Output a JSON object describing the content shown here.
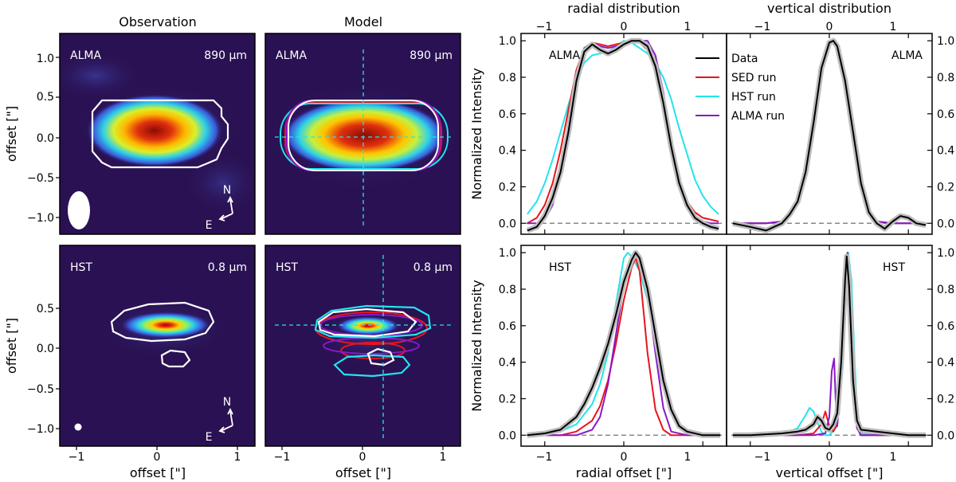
{
  "colors": {
    "panel_bg": "#2a1153",
    "data": "#000000",
    "sed": "#e8141c",
    "hst_run": "#22e4ec",
    "alma_run": "#8a18c8",
    "baseline": "#888888",
    "data_band": "#bdbdbd",
    "contour_obs": "#ffffff"
  },
  "images": {
    "column_titles": [
      "Observation",
      "Model"
    ],
    "x_axis_label": "offset [\"]",
    "y_axis_label": "offset [\"]",
    "x_ticks": [
      "−1",
      "0",
      "1"
    ],
    "y_ticks_alma": [
      "1.0",
      "0.5",
      "0.0",
      "−0.5",
      "−1.0"
    ],
    "y_ticks_hst": [
      "0.5",
      "0.0",
      "−0.5",
      "−1.0"
    ],
    "compass": {
      "north": "N",
      "east": "E"
    },
    "panels": [
      {
        "id": "obs-alma",
        "instrument": "ALMA",
        "wavelength": "890 μm"
      },
      {
        "id": "model-alma",
        "instrument": "ALMA",
        "wavelength": "890 μm"
      },
      {
        "id": "obs-hst",
        "instrument": "HST",
        "wavelength": "0.8 μm"
      },
      {
        "id": "model-hst",
        "instrument": "HST",
        "wavelength": "0.8 μm"
      }
    ]
  },
  "profiles": {
    "top_labels": [
      "radial distribution",
      "vertical distribution"
    ],
    "y_label": "Normalized Intensity",
    "x_labels": [
      "radial offset [\"]",
      "vertical offset [\"]"
    ],
    "x_ticks": [
      "−1",
      "0",
      "1"
    ],
    "y_ticks": [
      "0.0",
      "0.2",
      "0.4",
      "0.6",
      "0.8",
      "1.0"
    ],
    "row_labels": [
      "ALMA",
      "HST"
    ],
    "legend": [
      "Data",
      "SED run",
      "HST run",
      "ALMA run"
    ]
  },
  "chart_data": [
    {
      "type": "line",
      "title": "ALMA radial distribution",
      "xlabel": "",
      "ylabel": "Normalized Intensity",
      "xlim": [
        -1.3,
        1.3
      ],
      "ylim": [
        -0.06,
        1.04
      ],
      "series": [
        {
          "name": "Data",
          "x": [
            -1.22,
            -1.1,
            -1.0,
            -0.9,
            -0.8,
            -0.7,
            -0.6,
            -0.5,
            -0.4,
            -0.3,
            -0.2,
            -0.1,
            0.0,
            0.1,
            0.2,
            0.3,
            0.4,
            0.5,
            0.6,
            0.7,
            0.8,
            0.9,
            1.0,
            1.1,
            1.2
          ],
          "y": [
            -0.04,
            -0.02,
            0.04,
            0.14,
            0.28,
            0.5,
            0.78,
            0.94,
            0.98,
            0.95,
            0.93,
            0.95,
            0.98,
            1.0,
            1.0,
            0.97,
            0.86,
            0.66,
            0.42,
            0.22,
            0.1,
            0.03,
            0.0,
            -0.02,
            -0.03
          ]
        },
        {
          "name": "SED run",
          "x": [
            -1.22,
            -1.1,
            -1.0,
            -0.9,
            -0.8,
            -0.7,
            -0.6,
            -0.5,
            -0.4,
            -0.3,
            -0.2,
            -0.1,
            0.0,
            0.1,
            0.2,
            0.3,
            0.4,
            0.5,
            0.6,
            0.7,
            0.8,
            0.9,
            1.0,
            1.1,
            1.2
          ],
          "y": [
            0.0,
            0.03,
            0.1,
            0.22,
            0.4,
            0.62,
            0.84,
            0.96,
            0.99,
            0.98,
            0.97,
            0.98,
            0.99,
            1.0,
            0.99,
            0.95,
            0.84,
            0.64,
            0.42,
            0.24,
            0.12,
            0.06,
            0.03,
            0.02,
            0.01
          ]
        },
        {
          "name": "HST run",
          "x": [
            -1.22,
            -1.1,
            -1.0,
            -0.9,
            -0.8,
            -0.7,
            -0.6,
            -0.5,
            -0.4,
            -0.3,
            -0.2,
            -0.1,
            0.0,
            0.1,
            0.2,
            0.3,
            0.4,
            0.5,
            0.6,
            0.7,
            0.8,
            0.9,
            1.0,
            1.1,
            1.2
          ],
          "y": [
            0.05,
            0.12,
            0.22,
            0.35,
            0.5,
            0.65,
            0.78,
            0.88,
            0.92,
            0.93,
            0.94,
            0.97,
            1.0,
            0.99,
            0.96,
            0.93,
            0.88,
            0.8,
            0.68,
            0.52,
            0.38,
            0.24,
            0.15,
            0.09,
            0.05
          ]
        },
        {
          "name": "ALMA run",
          "x": [
            -1.22,
            -1.1,
            -1.0,
            -0.9,
            -0.8,
            -0.7,
            -0.6,
            -0.5,
            -0.4,
            -0.3,
            -0.2,
            -0.1,
            0.0,
            0.1,
            0.2,
            0.3,
            0.4,
            0.5,
            0.6,
            0.7,
            0.8,
            0.9,
            1.0,
            1.1,
            1.2
          ],
          "y": [
            0.0,
            0.0,
            0.02,
            0.1,
            0.3,
            0.56,
            0.82,
            0.96,
            0.99,
            0.97,
            0.96,
            0.97,
            0.98,
            0.99,
            1.0,
            1.0,
            0.92,
            0.72,
            0.46,
            0.24,
            0.1,
            0.03,
            0.01,
            0.0,
            0.0
          ]
        }
      ]
    },
    {
      "type": "line",
      "title": "ALMA vertical distribution",
      "xlabel": "",
      "ylabel": "",
      "xlim": [
        -1.3,
        1.3
      ],
      "ylim": [
        -0.06,
        1.04
      ],
      "series": [
        {
          "name": "Data",
          "x": [
            -1.22,
            -1.0,
            -0.8,
            -0.6,
            -0.5,
            -0.4,
            -0.3,
            -0.2,
            -0.1,
            0.0,
            0.05,
            0.1,
            0.2,
            0.3,
            0.4,
            0.5,
            0.6,
            0.7,
            0.8,
            0.9,
            1.0,
            1.1,
            1.22
          ],
          "y": [
            0.0,
            -0.02,
            -0.04,
            0.0,
            0.05,
            0.12,
            0.28,
            0.55,
            0.85,
            0.99,
            1.0,
            0.97,
            0.78,
            0.5,
            0.22,
            0.06,
            0.0,
            -0.03,
            0.01,
            0.04,
            0.03,
            0.0,
            -0.01
          ]
        },
        {
          "name": "SED run",
          "x": [
            -1.22,
            -0.8,
            -0.6,
            -0.5,
            -0.4,
            -0.3,
            -0.2,
            -0.1,
            0.0,
            0.05,
            0.1,
            0.2,
            0.3,
            0.4,
            0.5,
            0.6,
            0.8,
            1.22
          ],
          "y": [
            0.0,
            0.0,
            0.01,
            0.05,
            0.13,
            0.3,
            0.57,
            0.87,
            0.99,
            1.0,
            0.97,
            0.78,
            0.48,
            0.2,
            0.05,
            0.01,
            0.0,
            0.0
          ]
        },
        {
          "name": "HST run",
          "x": [
            -1.22,
            -0.8,
            -0.6,
            -0.5,
            -0.4,
            -0.3,
            -0.2,
            -0.1,
            0.0,
            0.05,
            0.1,
            0.2,
            0.3,
            0.4,
            0.5,
            0.6,
            0.8,
            1.22
          ],
          "y": [
            0.0,
            0.0,
            0.01,
            0.05,
            0.13,
            0.3,
            0.57,
            0.87,
            0.99,
            1.0,
            0.97,
            0.78,
            0.5,
            0.22,
            0.06,
            0.01,
            0.0,
            0.0
          ]
        },
        {
          "name": "ALMA run",
          "x": [
            -1.22,
            -0.8,
            -0.6,
            -0.5,
            -0.4,
            -0.3,
            -0.2,
            -0.1,
            0.0,
            0.05,
            0.1,
            0.2,
            0.3,
            0.4,
            0.5,
            0.6,
            0.8,
            1.22
          ],
          "y": [
            0.0,
            0.0,
            0.01,
            0.05,
            0.13,
            0.3,
            0.57,
            0.87,
            0.99,
            1.0,
            0.97,
            0.78,
            0.48,
            0.2,
            0.05,
            0.01,
            0.0,
            0.0
          ]
        }
      ]
    },
    {
      "type": "line",
      "title": "HST radial distribution",
      "xlabel": "radial offset [\"]",
      "ylabel": "Normalized Intensity",
      "xlim": [
        -1.3,
        1.3
      ],
      "ylim": [
        -0.06,
        1.04
      ],
      "series": [
        {
          "name": "Data",
          "x": [
            -1.22,
            -1.0,
            -0.8,
            -0.6,
            -0.5,
            -0.4,
            -0.3,
            -0.2,
            -0.1,
            0.0,
            0.1,
            0.15,
            0.2,
            0.3,
            0.4,
            0.5,
            0.6,
            0.7,
            0.8,
            1.0,
            1.22
          ],
          "y": [
            0.0,
            0.01,
            0.03,
            0.1,
            0.17,
            0.26,
            0.37,
            0.5,
            0.66,
            0.84,
            0.96,
            1.0,
            0.97,
            0.8,
            0.55,
            0.3,
            0.14,
            0.05,
            0.02,
            0.0,
            0.0
          ]
        },
        {
          "name": "SED run",
          "x": [
            -1.22,
            -0.8,
            -0.6,
            -0.4,
            -0.3,
            -0.2,
            -0.1,
            0.0,
            0.1,
            0.15,
            0.2,
            0.25,
            0.3,
            0.4,
            0.5,
            0.6,
            0.8,
            1.22
          ],
          "y": [
            0.0,
            0.0,
            0.02,
            0.08,
            0.16,
            0.3,
            0.5,
            0.74,
            0.92,
            0.97,
            0.9,
            0.68,
            0.45,
            0.14,
            0.03,
            0.0,
            0.0,
            0.0
          ]
        },
        {
          "name": "HST run",
          "x": [
            -1.22,
            -0.8,
            -0.6,
            -0.4,
            -0.3,
            -0.2,
            -0.1,
            0.0,
            0.05,
            0.1,
            0.2,
            0.3,
            0.4,
            0.5,
            0.6,
            0.7,
            0.8,
            1.22
          ],
          "y": [
            0.0,
            0.02,
            0.06,
            0.17,
            0.28,
            0.45,
            0.72,
            0.97,
            1.0,
            0.98,
            0.9,
            0.74,
            0.52,
            0.3,
            0.14,
            0.06,
            0.02,
            0.0
          ]
        },
        {
          "name": "ALMA run",
          "x": [
            -1.22,
            -0.8,
            -0.6,
            -0.4,
            -0.3,
            -0.2,
            -0.1,
            0.0,
            0.1,
            0.15,
            0.2,
            0.3,
            0.4,
            0.5,
            0.6,
            0.8,
            1.22
          ],
          "y": [
            0.0,
            0.0,
            0.0,
            0.03,
            0.1,
            0.28,
            0.55,
            0.82,
            0.97,
            1.0,
            0.96,
            0.78,
            0.45,
            0.15,
            0.02,
            0.0,
            0.0
          ]
        }
      ]
    },
    {
      "type": "line",
      "title": "HST vertical distribution",
      "xlabel": "vertical offset [\"]",
      "ylabel": "",
      "xlim": [
        -1.3,
        1.3
      ],
      "ylim": [
        -0.06,
        1.04
      ],
      "series": [
        {
          "name": "Data",
          "x": [
            -1.22,
            -1.0,
            -0.6,
            -0.4,
            -0.3,
            -0.2,
            -0.15,
            -0.1,
            -0.05,
            0.0,
            0.05,
            0.1,
            0.15,
            0.2,
            0.22,
            0.25,
            0.3,
            0.35,
            0.4,
            0.6,
            0.8,
            1.0,
            1.22
          ],
          "y": [
            0.0,
            0.0,
            0.01,
            0.02,
            0.03,
            0.06,
            0.1,
            0.08,
            0.04,
            0.03,
            0.06,
            0.12,
            0.4,
            0.85,
            0.98,
            0.82,
            0.3,
            0.08,
            0.03,
            0.02,
            0.01,
            0.0,
            0.0
          ]
        },
        {
          "name": "SED run",
          "x": [
            -1.22,
            -0.4,
            -0.2,
            -0.1,
            -0.05,
            0.0,
            0.05,
            0.1,
            0.15,
            0.2,
            0.23,
            0.26,
            0.3,
            0.35,
            0.4,
            1.22
          ],
          "y": [
            0.0,
            0.0,
            0.01,
            0.06,
            0.13,
            0.05,
            0.02,
            0.06,
            0.5,
            0.95,
            1.0,
            0.8,
            0.28,
            0.04,
            0.0,
            0.0
          ]
        },
        {
          "name": "HST run",
          "x": [
            -1.22,
            -0.6,
            -0.4,
            -0.3,
            -0.25,
            -0.2,
            -0.15,
            -0.1,
            -0.05,
            0.0,
            0.1,
            0.15,
            0.2,
            0.24,
            0.28,
            0.32,
            0.36,
            0.4,
            0.6,
            1.22
          ],
          "y": [
            0.0,
            0.0,
            0.04,
            0.11,
            0.15,
            0.13,
            0.07,
            0.02,
            0.0,
            0.0,
            0.05,
            0.4,
            0.88,
            1.0,
            0.85,
            0.4,
            0.08,
            0.01,
            0.0,
            0.0
          ]
        },
        {
          "name": "ALMA run",
          "x": [
            -1.22,
            -0.2,
            -0.05,
            0.0,
            0.03,
            0.06,
            0.08,
            0.1,
            0.15,
            0.2,
            0.23,
            0.26,
            0.3,
            0.35,
            0.4,
            1.22
          ],
          "y": [
            0.0,
            0.0,
            0.01,
            0.1,
            0.35,
            0.42,
            0.2,
            0.05,
            0.3,
            0.88,
            1.0,
            0.82,
            0.3,
            0.04,
            0.0,
            0.0
          ]
        }
      ]
    }
  ]
}
